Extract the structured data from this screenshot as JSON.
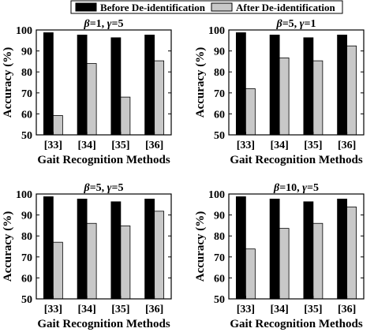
{
  "chart_data": [
    {
      "type": "bar",
      "title_parts": [
        {
          "text": "β",
          "italic": true
        },
        {
          "text": "=1, ",
          "italic": false
        },
        {
          "text": "γ",
          "italic": true
        },
        {
          "text": "=5",
          "italic": false
        }
      ],
      "categories": [
        "[33]",
        "[34]",
        "[35]",
        "[36]"
      ],
      "series": [
        {
          "name": "Before De-identification",
          "values": [
            98.7,
            97.6,
            96.3,
            97.6
          ]
        },
        {
          "name": "After De-identification",
          "values": [
            59.2,
            84.0,
            68.0,
            85.3
          ]
        }
      ],
      "xlabel": "Gait Recognition Methods",
      "ylabel": "Accuracy (%)",
      "ylim": [
        50,
        100
      ],
      "yticks": [
        50,
        60,
        70,
        80,
        90,
        100
      ]
    },
    {
      "type": "bar",
      "title_parts": [
        {
          "text": "β",
          "italic": true
        },
        {
          "text": "=5, ",
          "italic": false
        },
        {
          "text": "γ",
          "italic": true
        },
        {
          "text": "=1",
          "italic": false
        }
      ],
      "categories": [
        "[33]",
        "[34]",
        "[35]",
        "[36]"
      ],
      "series": [
        {
          "name": "Before De-identification",
          "values": [
            98.7,
            97.6,
            96.3,
            97.6
          ]
        },
        {
          "name": "After De-identification",
          "values": [
            72.0,
            86.7,
            85.3,
            92.4
          ]
        }
      ],
      "xlabel": "Gait Recognition Methods",
      "ylabel": "Accuracy (%)",
      "ylim": [
        50,
        100
      ],
      "yticks": [
        50,
        60,
        70,
        80,
        90,
        100
      ]
    },
    {
      "type": "bar",
      "title_parts": [
        {
          "text": "β",
          "italic": true
        },
        {
          "text": "=5, ",
          "italic": false
        },
        {
          "text": "γ",
          "italic": true
        },
        {
          "text": "=5",
          "italic": false
        }
      ],
      "categories": [
        "[33]",
        "[34]",
        "[35]",
        "[36]"
      ],
      "series": [
        {
          "name": "Before De-identification",
          "values": [
            98.7,
            97.6,
            96.3,
            97.6
          ]
        },
        {
          "name": "After De-identification",
          "values": [
            77.0,
            86.0,
            84.8,
            91.8
          ]
        }
      ],
      "xlabel": "Gait Recognition Methods",
      "ylabel": "Accuracy (%)",
      "ylim": [
        50,
        100
      ],
      "yticks": [
        50,
        60,
        70,
        80,
        90,
        100
      ]
    },
    {
      "type": "bar",
      "title_parts": [
        {
          "text": "β",
          "italic": true
        },
        {
          "text": "=10, ",
          "italic": false
        },
        {
          "text": "γ",
          "italic": true
        },
        {
          "text": "=5",
          "italic": false
        }
      ],
      "categories": [
        "[33]",
        "[34]",
        "[35]",
        "[36]"
      ],
      "series": [
        {
          "name": "Before De-identification",
          "values": [
            98.7,
            97.6,
            96.3,
            97.6
          ]
        },
        {
          "name": "After De-identification",
          "values": [
            73.8,
            83.6,
            86.0,
            93.8
          ]
        }
      ],
      "xlabel": "Gait Recognition Methods",
      "ylabel": "Accuracy (%)",
      "ylim": [
        50,
        100
      ],
      "yticks": [
        50,
        60,
        70,
        80,
        90,
        100
      ]
    }
  ],
  "legend": {
    "placement": "top-center",
    "items": [
      {
        "label": "Before De-identification",
        "color": "#000000"
      },
      {
        "label": "After De-identification",
        "color": "#c8c8c8"
      }
    ]
  },
  "colors": {
    "before": "#000000",
    "after": "#c8c8c8",
    "axis": "#000000"
  }
}
